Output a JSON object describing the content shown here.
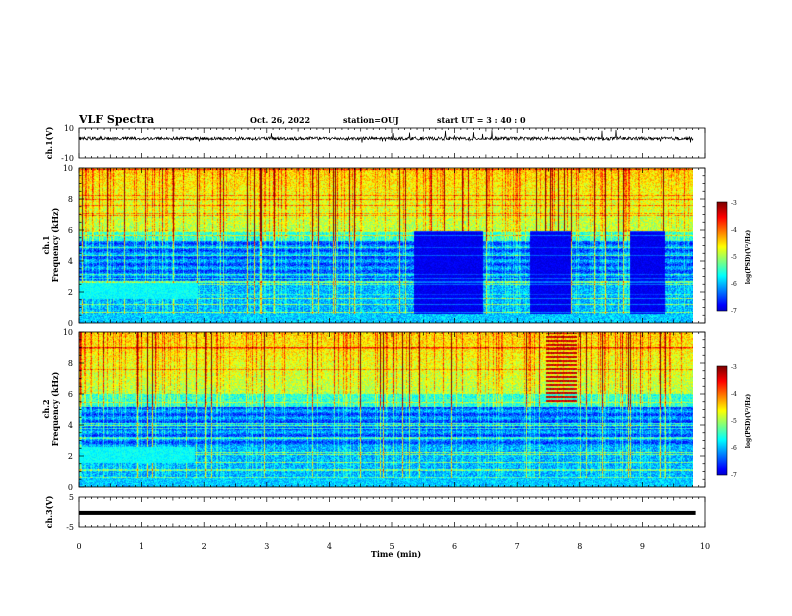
{
  "header": {
    "title": "VLF Spectra",
    "date": "Oct. 26, 2022",
    "station": "station=OUJ",
    "start": "start  UT  =   3  : 40 : 0"
  },
  "chart_data": [
    {
      "type": "line",
      "panel": "ch1-waveform",
      "ylabel": "ch.1(V)",
      "ylim": [
        -10,
        10
      ],
      "ytick_labels": [
        "-10",
        "10"
      ],
      "xlim": [
        0,
        10
      ],
      "baseline_value": 3
    },
    {
      "type": "heatmap",
      "panel": "ch1-spectrogram",
      "ylabel_top": "ch.1",
      "ylabel": "Frequency  (kHz)",
      "ylim": [
        0,
        10
      ],
      "ytick_labels": [
        "0",
        "2",
        "4",
        "6",
        "8",
        "10"
      ],
      "xlim": [
        0,
        10
      ],
      "quiet_intervals_min": [
        [
          5.35,
          6.45
        ],
        [
          7.2,
          7.85
        ],
        [
          8.8,
          9.35
        ]
      ],
      "band_2khz_until_min": 1.9,
      "colorbar": {
        "range": [
          -7,
          -3
        ],
        "tick_labels": [
          "-3",
          "-4",
          "-5",
          "-6",
          "-7"
        ],
        "label": "log(PSD)(V²/Hz)"
      }
    },
    {
      "type": "heatmap",
      "panel": "ch2-spectrogram",
      "ylabel_top": "ch.2",
      "ylabel": "Frequency  (kHz)",
      "ylim": [
        0,
        10
      ],
      "ytick_labels": [
        "0",
        "2",
        "4",
        "6",
        "8",
        "10"
      ],
      "xlim": [
        0,
        10
      ],
      "band_2khz_until_min": 1.85,
      "emission_interval_min": [
        7.45,
        7.95
      ],
      "colorbar": {
        "range": [
          -7,
          -3
        ],
        "tick_labels": [
          "-3",
          "-4",
          "-5",
          "-6",
          "-7"
        ],
        "label": "log(PSD)(V²/Hz)"
      }
    },
    {
      "type": "line",
      "panel": "ch3-waveform",
      "ylabel": "ch.3(V)",
      "ylim": [
        -5,
        5
      ],
      "ytick_labels": [
        "-5",
        "5"
      ],
      "xlim": [
        0,
        9.85
      ],
      "constant_value": -0.3,
      "xlabel": "Time  (min)",
      "xtick_labels": [
        "0",
        "1",
        "2",
        "3",
        "4",
        "5",
        "6",
        "7",
        "8",
        "9",
        "10"
      ]
    }
  ]
}
